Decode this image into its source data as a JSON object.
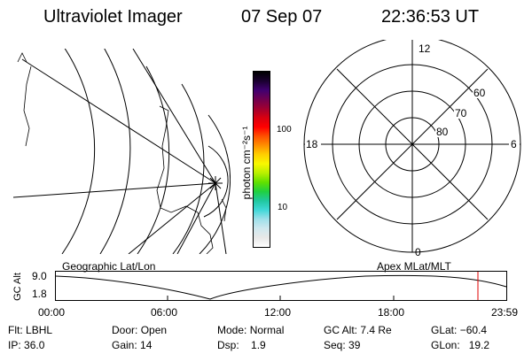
{
  "header": {
    "instrument": "Ultraviolet Imager",
    "date": "07 Sep 07",
    "time": "22:36:53 UT"
  },
  "colorbar": {
    "unit_label": "photon cm⁻²s⁻¹",
    "tick_100": "100",
    "tick_10": "10",
    "colors": [
      "#ffffff",
      "#e8e8e8",
      "#cfe8ef",
      "#9fe0ea",
      "#40d8d8",
      "#20c8a0",
      "#20d040",
      "#60e000",
      "#b8f000",
      "#f8f800",
      "#ffd000",
      "#ff9000",
      "#ff5000",
      "#ff0000",
      "#d80010",
      "#a00030",
      "#700050",
      "#400070",
      "#1a0030",
      "#000000"
    ]
  },
  "polar_plot": {
    "mlt_top": "12",
    "mlt_left": "18",
    "mlt_right": "6",
    "mlt_bottom": "0",
    "lat_60": "60",
    "lat_70": "70",
    "lat_80": "80"
  },
  "altitude_plot": {
    "title_left": "Geographic Lat/Lon",
    "title_right": "Apex MLat/MLT",
    "axis_name": "GC Alt",
    "y_top": "9.0",
    "y_bottom": "1.8",
    "x_ticks": [
      "00:00",
      "06:00",
      "12:00",
      "18:00",
      "23:59"
    ],
    "marker_color": "#e00000"
  },
  "status": {
    "filter_label": "Flt:",
    "filter": "LBHL",
    "ip_label": "IP:",
    "ip": "36.0",
    "door_label": "Door:",
    "door": "Open",
    "gain_label": "Gain:",
    "gain": "14",
    "mode_label": "Mode:",
    "mode": "Normal",
    "dsp_label": "Dsp:",
    "dsp": "1.9",
    "gcalt_label": "GC Alt:",
    "gcalt": "7.4 Re",
    "seq_label": "Seq:",
    "seq": "39",
    "glat_label": "GLat:",
    "glat": "−60.4",
    "glon_label": "GLon:",
    "glon": "19.2"
  }
}
